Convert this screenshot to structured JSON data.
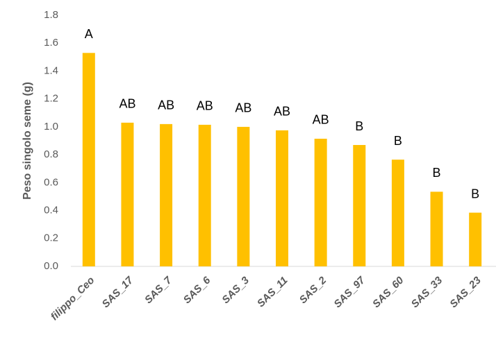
{
  "chart_data": {
    "type": "bar",
    "ylabel": "Peso singolo seme (g)",
    "categories": [
      "filippo_Ceo",
      "SAS_17",
      "SAS_7",
      "SAS_6",
      "SAS_3",
      "SAS_11",
      "SAS_2",
      "SAS_97",
      "SAS_60",
      "SAS_33",
      "SAS_23"
    ],
    "values": [
      1.53,
      1.03,
      1.02,
      1.015,
      1.0,
      0.975,
      0.915,
      0.87,
      0.765,
      0.535,
      0.385
    ],
    "group_labels": [
      "A",
      "AB",
      "AB",
      "AB",
      "AB",
      "AB",
      "AB",
      "B",
      "B",
      "B",
      "B"
    ],
    "color": "#ffc000",
    "ylim": [
      0,
      1.8
    ],
    "yticks": [
      {
        "value": 0,
        "label": "0.0"
      },
      0.2,
      0.4,
      0.6,
      0.8,
      {
        "value": 1.0,
        "label": "1.0"
      },
      1.2,
      1.4,
      1.6,
      1.8
    ],
    "grid": false
  }
}
